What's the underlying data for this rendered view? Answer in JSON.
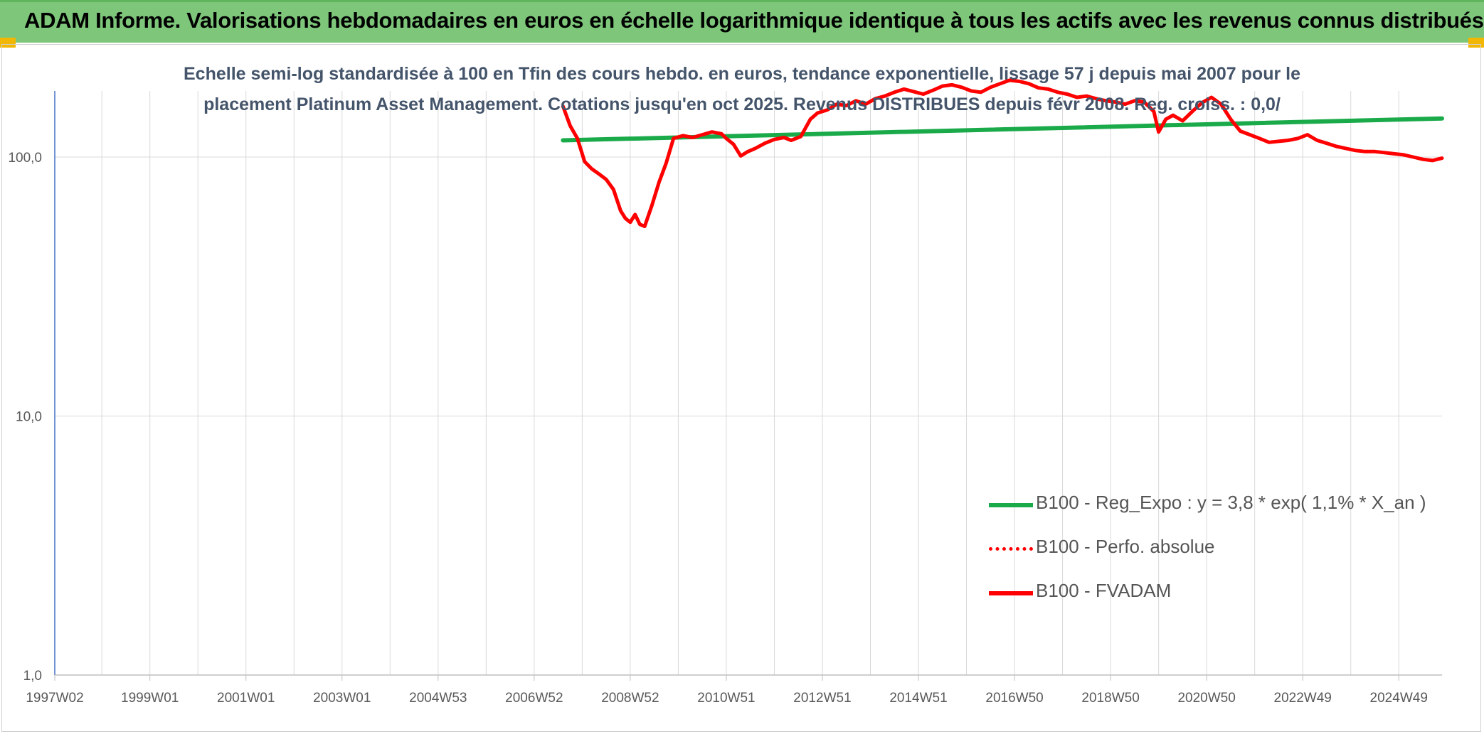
{
  "banner_title": "ADAM Informe. Valorisations hebdomadaires en euros en échelle logarithmique identique à tous les actifs avec les revenus connus distribués",
  "colors": {
    "banner": "#7dc67a",
    "green_series": "#1aaa4a",
    "red_series": "#ff0000",
    "grid": "#d9d9d9",
    "axis": "#4472c4"
  },
  "chart_data": {
    "type": "line",
    "title_lines": [
      "Echelle semi-log standardisée à 100 en Tfin des cours hebdo. en euros, tendance exponentielle, lissage 57 j depuis mai 2007 pour le",
      "placement Platinum Asset Management. Cotations jusqu'en oct 2025. Revenus DISTRIBUES depuis févr 2008. Reg. croiss. : 0,0/"
    ],
    "y_scale": "log",
    "ylim": [
      1,
      180
    ],
    "y_ticks": [
      {
        "value": 1,
        "label": "1,0"
      },
      {
        "value": 10,
        "label": "10,0"
      },
      {
        "value": 100,
        "label": "100,0"
      }
    ],
    "xlim": [
      1997.02,
      2025.9
    ],
    "x_ticks": [
      {
        "value": 1997.02,
        "label": "1997W02"
      },
      {
        "value": 1999.0,
        "label": "1999W01"
      },
      {
        "value": 2001.0,
        "label": "2001W01"
      },
      {
        "value": 2003.0,
        "label": "2003W01"
      },
      {
        "value": 2005.0,
        "label": "2004W53"
      },
      {
        "value": 2007.0,
        "label": "2006W52"
      },
      {
        "value": 2009.0,
        "label": "2008W52"
      },
      {
        "value": 2011.0,
        "label": "2010W51"
      },
      {
        "value": 2013.0,
        "label": "2012W51"
      },
      {
        "value": 2015.0,
        "label": "2014W51"
      },
      {
        "value": 2017.0,
        "label": "2016W50"
      },
      {
        "value": 2019.0,
        "label": "2018W50"
      },
      {
        "value": 2021.0,
        "label": "2020W50"
      },
      {
        "value": 2023.0,
        "label": "2022W49"
      },
      {
        "value": 2025.0,
        "label": "2024W49"
      }
    ],
    "legend_position": "bottom-right",
    "series": [
      {
        "name": "B100 - Reg_Expo : y = 3,8 * exp( 1,1% *  X_an )",
        "style": "solid-green",
        "x": [
          2007.6,
          2025.9
        ],
        "y": [
          116,
          141
        ]
      },
      {
        "name": "B100 - Perfo. absolue",
        "style": "dotted-red",
        "x": [],
        "y": []
      },
      {
        "name": "B100 - FVADAM",
        "style": "solid-red",
        "x": [
          2007.6,
          2007.75,
          2007.9,
          2008.05,
          2008.2,
          2008.35,
          2008.5,
          2008.65,
          2008.8,
          2008.9,
          2009.0,
          2009.1,
          2009.2,
          2009.3,
          2009.45,
          2009.6,
          2009.75,
          2009.9,
          2010.1,
          2010.3,
          2010.5,
          2010.7,
          2010.9,
          2011.0,
          2011.15,
          2011.3,
          2011.45,
          2011.6,
          2011.8,
          2012.0,
          2012.2,
          2012.35,
          2012.55,
          2012.75,
          2012.9,
          2013.1,
          2013.3,
          2013.5,
          2013.7,
          2013.9,
          2014.1,
          2014.3,
          2014.5,
          2014.7,
          2014.9,
          2015.1,
          2015.3,
          2015.5,
          2015.7,
          2015.9,
          2016.1,
          2016.3,
          2016.5,
          2016.7,
          2016.9,
          2017.1,
          2017.3,
          2017.5,
          2017.7,
          2017.9,
          2018.1,
          2018.3,
          2018.5,
          2018.7,
          2018.9,
          2019.1,
          2019.3,
          2019.5,
          2019.7,
          2019.9,
          2020.0,
          2020.15,
          2020.3,
          2020.5,
          2020.7,
          2020.9,
          2021.1,
          2021.3,
          2021.5,
          2021.7,
          2021.9,
          2022.1,
          2022.3,
          2022.5,
          2022.7,
          2022.9,
          2023.1,
          2023.3,
          2023.5,
          2023.7,
          2023.9,
          2024.1,
          2024.3,
          2024.5,
          2024.7,
          2024.9,
          2025.1,
          2025.3,
          2025.5,
          2025.7,
          2025.9
        ],
        "y": [
          157,
          132,
          118,
          96,
          90,
          86,
          82,
          75,
          62,
          58,
          56,
          60,
          55,
          54,
          65,
          80,
          95,
          118,
          121,
          119,
          122,
          125,
          123,
          118,
          112,
          101,
          105,
          108,
          113,
          117,
          119,
          116,
          120,
          140,
          148,
          152,
          160,
          158,
          165,
          160,
          168,
          172,
          178,
          183,
          179,
          175,
          181,
          188,
          190,
          186,
          180,
          178,
          186,
          192,
          198,
          196,
          192,
          185,
          183,
          178,
          175,
          170,
          172,
          168,
          165,
          163,
          160,
          165,
          163,
          150,
          125,
          140,
          145,
          138,
          150,
          162,
          170,
          160,
          140,
          126,
          122,
          118,
          114,
          115,
          116,
          118,
          122,
          116,
          113,
          110,
          108,
          106,
          105,
          105,
          104,
          103,
          102,
          100,
          98,
          97,
          99
        ]
      }
    ]
  }
}
